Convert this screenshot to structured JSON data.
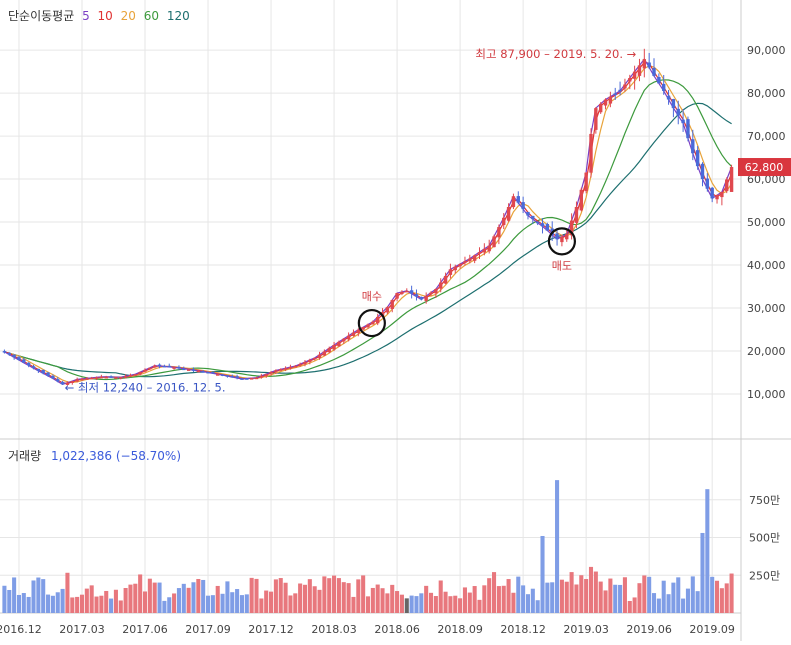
{
  "legend": {
    "title": "단순이동평균",
    "periods": [
      {
        "label": "5",
        "color": "#7b3fc4"
      },
      {
        "label": "10",
        "color": "#e03131"
      },
      {
        "label": "20",
        "color": "#e8a33a"
      },
      {
        "label": "60",
        "color": "#3d9a3d"
      },
      {
        "label": "120",
        "color": "#1d6f6f"
      }
    ]
  },
  "volume_legend": {
    "title": "거래량",
    "value": "1,022,386 (−58.70%)"
  },
  "colors": {
    "up": "#e0484e",
    "down": "#4a6ad8",
    "up_volume": "#e8777d",
    "down_volume": "#7f9de6",
    "highlight_volume": "#666666",
    "current_price_bg": "#d9363e",
    "max_annotation": "#d03a3f",
    "min_annotation": "#3a56c4",
    "grid": "#e6e6e6"
  },
  "chart_data": {
    "type": "candlestick",
    "price_axis": {
      "ticks": [
        10000,
        20000,
        30000,
        40000,
        50000,
        60000,
        70000,
        80000,
        90000
      ],
      "tick_labels": [
        "10,000",
        "20,000",
        "30,000",
        "40,000",
        "50,000",
        "60,000",
        "70,000",
        "80,000",
        "90,000"
      ],
      "range": [
        0,
        97000
      ],
      "side": "right"
    },
    "volume_axis": {
      "ticks": [
        2500000,
        5000000,
        7500000
      ],
      "tick_labels": [
        "250만",
        "500만",
        "750만"
      ],
      "range": [
        0,
        10000000
      ],
      "side": "right"
    },
    "x_axis": {
      "tick_labels": [
        "2016.12",
        "2017.03",
        "2017.06",
        "2017.09",
        "2017.12",
        "2018.03",
        "2018.06",
        "2018.09",
        "2018.12",
        "2019.03",
        "2019.06",
        "2019.09"
      ]
    },
    "price_path": [
      [
        0,
        19800
      ],
      [
        6,
        16000
      ],
      [
        10,
        13600
      ],
      [
        12,
        12240
      ],
      [
        15,
        13400
      ],
      [
        20,
        14000
      ],
      [
        24,
        13900
      ],
      [
        27,
        14600
      ],
      [
        31,
        16600
      ],
      [
        35,
        16200
      ],
      [
        40,
        15400
      ],
      [
        45,
        14400
      ],
      [
        49,
        13500
      ],
      [
        52,
        13800
      ],
      [
        56,
        15500
      ],
      [
        60,
        16500
      ],
      [
        64,
        18400
      ],
      [
        68,
        21400
      ],
      [
        72,
        24300
      ],
      [
        76,
        26800
      ],
      [
        79,
        30200
      ],
      [
        81,
        33500
      ],
      [
        83,
        34000
      ],
      [
        86,
        32000
      ],
      [
        89,
        34400
      ],
      [
        92,
        39000
      ],
      [
        96,
        41500
      ],
      [
        100,
        44500
      ],
      [
        103,
        51000
      ],
      [
        105,
        56000
      ],
      [
        108,
        51500
      ],
      [
        111,
        49000
      ],
      [
        114,
        46000
      ],
      [
        116,
        47200
      ],
      [
        118,
        53500
      ],
      [
        120,
        61500
      ],
      [
        121,
        70500
      ],
      [
        122,
        76500
      ],
      [
        124,
        78500
      ],
      [
        127,
        80500
      ],
      [
        130,
        85000
      ],
      [
        132,
        87900
      ],
      [
        134,
        84000
      ],
      [
        136,
        80500
      ],
      [
        138,
        76500
      ],
      [
        140,
        73000
      ],
      [
        142,
        66000
      ],
      [
        144,
        60000
      ],
      [
        146,
        55500
      ],
      [
        148,
        57000
      ],
      [
        150,
        62800
      ]
    ],
    "current_price": {
      "value": 62800,
      "label": "62,800"
    },
    "annotations": {
      "max_label": "최고 87,900 – 2019. 5. 20.",
      "max_value": 87900,
      "min_label": "최저 12,240 – 2016. 12. 5.",
      "min_value": 12240,
      "buy_label": "매수",
      "buy_value": 26500,
      "sell_label": "매도",
      "sell_value": 45500
    }
  }
}
